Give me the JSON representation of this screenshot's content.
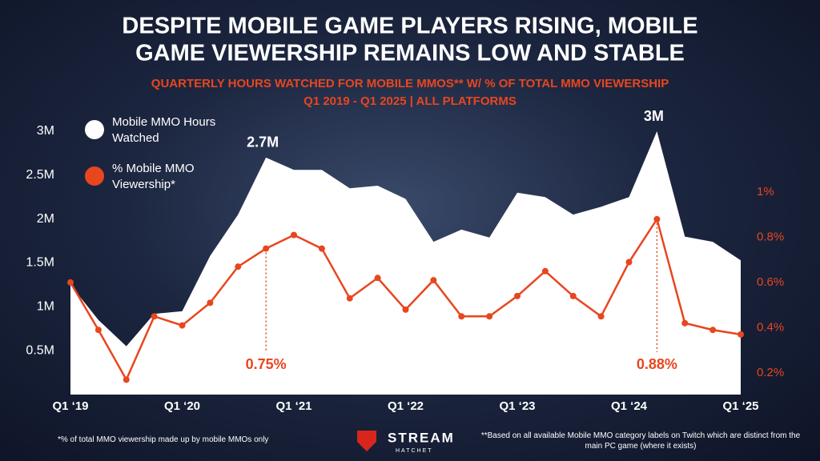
{
  "chart_data": {
    "type": "area-line",
    "title": [
      "DESPITE MOBILE GAME PLAYERS RISING, MOBILE",
      "GAME VIEWERSHIP REMAINS LOW AND STABLE"
    ],
    "subtitle": [
      "QUARTERLY HOURS WATCHED FOR MOBILE MMOS** W/ % OF TOTAL MMO VIEWERSHIP",
      "Q1 2019 - Q1 2025 | ALL PLATFORMS"
    ],
    "categories": [
      "Q1 ‘19",
      null,
      null,
      null,
      "Q1 ‘20",
      null,
      null,
      null,
      "Q1 ‘21",
      null,
      null,
      null,
      "Q1 ‘22",
      null,
      null,
      null,
      "Q1 ‘23",
      null,
      null,
      null,
      "Q1 ‘24",
      null,
      null,
      null,
      "Q1 ‘25"
    ],
    "series": [
      {
        "name": "Mobile MMO Hours Watched",
        "color": "#ffffff",
        "values": [
          1.25,
          0.85,
          0.55,
          0.92,
          0.95,
          1.58,
          2.05,
          2.7,
          2.56,
          2.56,
          2.35,
          2.38,
          2.23,
          1.74,
          1.88,
          1.79,
          2.3,
          2.25,
          2.05,
          2.14,
          2.25,
          3.0,
          1.8,
          1.74,
          1.53
        ]
      },
      {
        "name": "% Mobile MMO Viewership*",
        "color": "#e8461f",
        "axis": "y2",
        "values": [
          0.6,
          0.39,
          0.17,
          0.45,
          0.41,
          0.51,
          0.67,
          0.75,
          0.81,
          0.75,
          0.53,
          0.62,
          0.48,
          0.61,
          0.45,
          0.45,
          0.54,
          0.65,
          0.54,
          0.45,
          0.69,
          0.88,
          0.42,
          0.39,
          0.37
        ]
      }
    ],
    "ylim": [
      0,
      3
    ],
    "yticks": [
      {
        "value": 0.5,
        "label": "0.5M"
      },
      {
        "value": 1,
        "label": "1M"
      },
      {
        "value": 1.5,
        "label": "1.5M"
      },
      {
        "value": 2,
        "label": "2M"
      },
      {
        "value": 2.5,
        "label": "2.5M"
      },
      {
        "value": 3,
        "label": "3M"
      }
    ],
    "y2lim": [
      0.104,
      1.269
    ],
    "y2ticks": [
      {
        "value": 0.2,
        "label": "0.2%"
      },
      {
        "value": 0.4,
        "label": "0.4%"
      },
      {
        "value": 0.6,
        "label": "0.6%"
      },
      {
        "value": 0.8,
        "label": "0.8%"
      },
      {
        "value": 1,
        "label": "1%"
      }
    ],
    "annotations": [
      "2.7M",
      "3M",
      "0.75%",
      "0.88%"
    ],
    "footnotes": [
      "*% of total MMO viewership made up by mobile MMOs only",
      "**Based on all available Mobile MMO category labels on Twitch which are distinct from the main PC game (where it exists)"
    ],
    "brand": [
      "STREAM",
      "HATCHET"
    ]
  }
}
